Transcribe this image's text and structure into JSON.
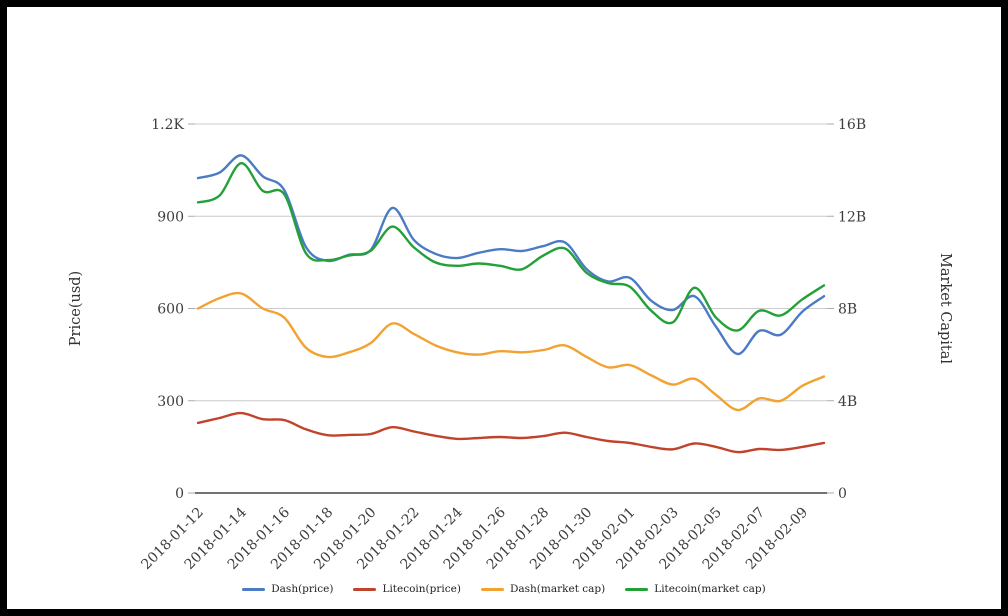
{
  "page": {
    "background": "#ffffff",
    "frame_color": "#000000",
    "grid_color": "#cccccc",
    "axis_line_color": "#444444",
    "tick_text_color": "#3d3d3d"
  },
  "chart_data": {
    "type": "line",
    "smooth": true,
    "grid": true,
    "legend_position": "bottom",
    "x": [
      "2018-01-12",
      "2018-01-13",
      "2018-01-14",
      "2018-01-15",
      "2018-01-16",
      "2018-01-17",
      "2018-01-18",
      "2018-01-19",
      "2018-01-20",
      "2018-01-21",
      "2018-01-22",
      "2018-01-23",
      "2018-01-24",
      "2018-01-25",
      "2018-01-26",
      "2018-01-27",
      "2018-01-28",
      "2018-01-29",
      "2018-01-30",
      "2018-01-31",
      "2018-02-01",
      "2018-02-02",
      "2018-02-03",
      "2018-02-04",
      "2018-02-05",
      "2018-02-06",
      "2018-02-07",
      "2018-02-08",
      "2018-02-09",
      "2018-02-10"
    ],
    "x_tick_labels": [
      "2018-01-12",
      "2018-01-14",
      "2018-01-16",
      "2018-01-18",
      "2018-01-20",
      "2018-01-22",
      "2018-01-24",
      "2018-01-26",
      "2018-01-28",
      "2018-01-30",
      "2018-02-01",
      "2018-02-03",
      "2018-02-05",
      "2018-02-07",
      "2018-02-09"
    ],
    "x_label_every": 2,
    "left_axis": {
      "title": "Price(usd)",
      "unit": "usd",
      "range": [
        0,
        1200
      ],
      "tick_values": [
        0,
        300,
        600,
        900,
        1200
      ],
      "tick_labels": [
        "0",
        "300",
        "600",
        "900",
        "1.2K"
      ]
    },
    "right_axis": {
      "title": "Market Capital",
      "unit": "billions usd",
      "range": [
        0,
        16
      ],
      "tick_values": [
        0,
        4,
        8,
        12,
        16
      ],
      "tick_labels": [
        "0",
        "4B",
        "8B",
        "12B",
        "16B"
      ]
    },
    "series": [
      {
        "name": "Dash(price)",
        "slug": "dash-price",
        "axis": "left",
        "color": "#4a7bc4",
        "values": [
          1024,
          1042,
          1098,
          1030,
          985,
          800,
          755,
          775,
          790,
          927,
          823,
          778,
          764,
          781,
          793,
          787,
          803,
          815,
          728,
          688,
          700,
          625,
          595,
          640,
          540,
          452,
          527,
          515,
          590,
          640
        ]
      },
      {
        "name": "Litecoin(price)",
        "slug": "litecoin-price",
        "axis": "left",
        "color": "#c0432c",
        "values": [
          228,
          244,
          260,
          240,
          237,
          207,
          188,
          189,
          192,
          214,
          200,
          186,
          176,
          179,
          182,
          179,
          185,
          196,
          182,
          169,
          163,
          150,
          142,
          161,
          150,
          133,
          143,
          140,
          150,
          163
        ]
      },
      {
        "name": "Dash(market cap)",
        "slug": "dash-market-cap",
        "axis": "right",
        "color": "#f2a231",
        "values": [
          8.0,
          8.45,
          8.65,
          8.0,
          7.6,
          6.3,
          5.9,
          6.1,
          6.5,
          7.35,
          6.9,
          6.4,
          6.1,
          6.0,
          6.15,
          6.1,
          6.2,
          6.4,
          5.9,
          5.45,
          5.55,
          5.1,
          4.7,
          4.95,
          4.25,
          3.6,
          4.1,
          4.0,
          4.65,
          5.05
        ]
      },
      {
        "name": "Litecoin(market cap)",
        "slug": "litecoin-market-cap",
        "axis": "right",
        "color": "#23a038",
        "values": [
          12.6,
          12.9,
          14.3,
          13.1,
          12.95,
          10.4,
          10.1,
          10.3,
          10.5,
          11.55,
          10.65,
          10.0,
          9.85,
          9.95,
          9.85,
          9.7,
          10.3,
          10.6,
          9.55,
          9.1,
          8.95,
          7.9,
          7.4,
          8.9,
          7.6,
          7.05,
          7.9,
          7.7,
          8.4,
          9.0
        ]
      }
    ]
  }
}
